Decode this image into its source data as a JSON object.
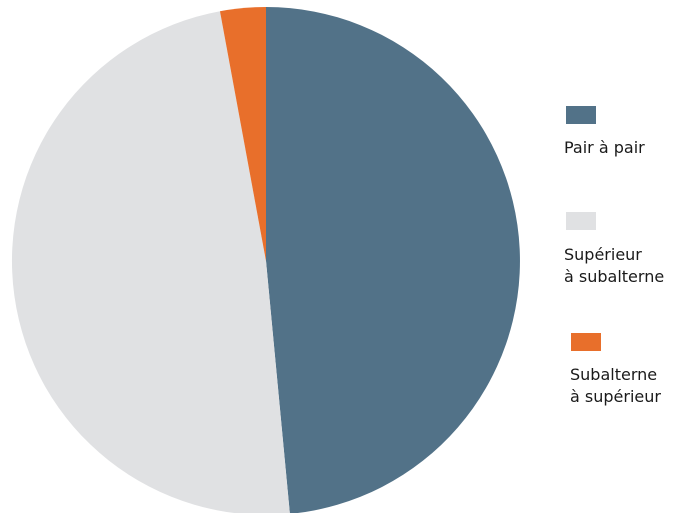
{
  "chart_data": {
    "type": "pie",
    "slices": [
      {
        "label": "Pair à pair",
        "value": 48.5,
        "color": "#527288"
      },
      {
        "label": "Supérieur\nà subalterne",
        "value": 48.6,
        "color": "#e0e1e3"
      },
      {
        "label": "Subalterne\nà supérieur",
        "value": 2.9,
        "color": "#e86f2b"
      }
    ],
    "start_angle_deg": 0,
    "direction": "clockwise",
    "title": "",
    "legend_position": "right"
  }
}
